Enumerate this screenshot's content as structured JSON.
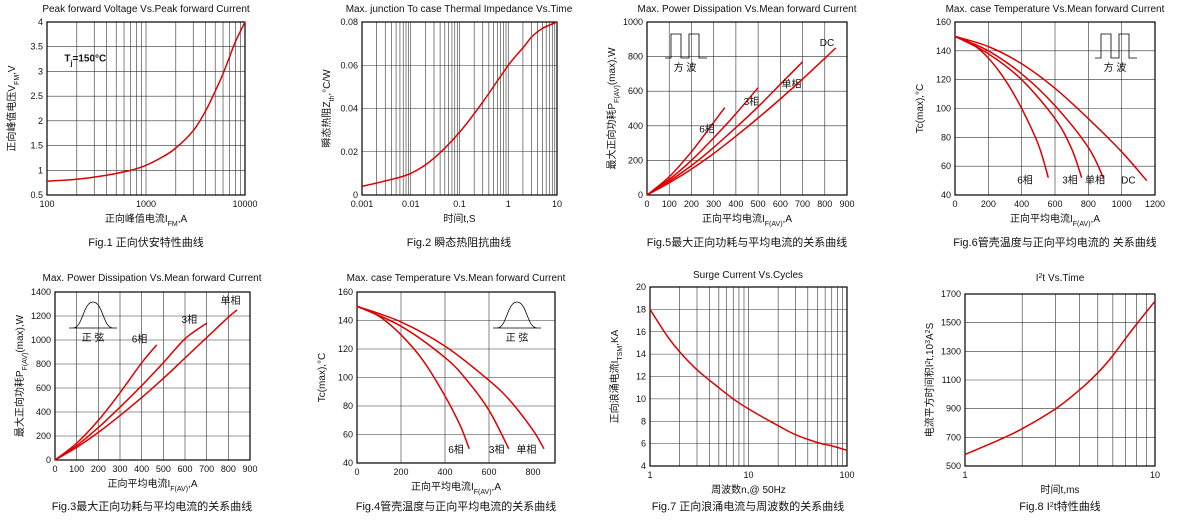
{
  "colors": {
    "curve": "#dd0000",
    "frame": "#000000",
    "grid": "#333333"
  },
  "chart_data": [
    {
      "id": "fig1",
      "type": "line",
      "title": "Peak forward Voltage Vs.Peak forward Current",
      "caption": "Fig.1 正向伏安特性曲线",
      "xlabel_main": "正向峰值电流I",
      "xlabel_sub": "FM",
      "xlabel_tail": ",A",
      "ylabel_main": "正向峰值电压V",
      "ylabel_sub": "FM",
      "ylabel_tail": ",V",
      "xscale": "log",
      "xlim": [
        100,
        10000
      ],
      "xticks": [
        100,
        1000,
        10000
      ],
      "xtick_labels": [
        "100",
        "1000",
        "10000"
      ],
      "ylim": [
        0.5,
        4
      ],
      "yticks": [
        0.5,
        1,
        1.5,
        2,
        2.5,
        3,
        3.5,
        4
      ],
      "ytick_labels": [
        "0.5",
        "1",
        "1.5",
        "2",
        "2.5",
        "3",
        "3.5",
        "4"
      ],
      "annotations": [
        {
          "text_main": "T",
          "text_sub": "j",
          "text_tail": "=150°C",
          "x": 150,
          "y": 3.2
        }
      ],
      "series": [
        {
          "x": [
            100,
            200,
            400,
            700,
            1000,
            1500,
            2000,
            3000,
            4000,
            5000,
            6000,
            7000,
            8000,
            10000
          ],
          "y": [
            0.78,
            0.82,
            0.9,
            1.0,
            1.1,
            1.28,
            1.45,
            1.8,
            2.2,
            2.6,
            2.95,
            3.3,
            3.6,
            4.0
          ]
        }
      ]
    },
    {
      "id": "fig2",
      "type": "line",
      "title": "Max. junction To case Thermal Impedance Vs.Time",
      "caption": "Fig.2  瞬态热阻抗曲线",
      "xlabel_main": "时间t,S",
      "xlabel_sub": "",
      "xlabel_tail": "",
      "ylabel_main": "瞬态热阻Z",
      "ylabel_sub": "th",
      "ylabel_tail": ",°C/W",
      "xscale": "log",
      "xlim": [
        0.001,
        10
      ],
      "xticks": [
        0.001,
        0.01,
        0.1,
        1,
        10
      ],
      "xtick_labels": [
        "0.001",
        "0.01",
        "0.1",
        "1",
        "10"
      ],
      "ylim": [
        0,
        0.08
      ],
      "yticks": [
        0,
        0.02,
        0.04,
        0.06,
        0.08
      ],
      "ytick_labels": [
        "0",
        "0.02",
        "0.04",
        "0.06",
        "0.08"
      ],
      "series": [
        {
          "x": [
            0.001,
            0.003,
            0.01,
            0.03,
            0.1,
            0.3,
            1,
            2,
            3,
            5,
            10
          ],
          "y": [
            0.004,
            0.0065,
            0.01,
            0.017,
            0.029,
            0.043,
            0.06,
            0.068,
            0.073,
            0.077,
            0.08
          ]
        }
      ]
    },
    {
      "id": "fig5",
      "type": "line",
      "title": "Max. Power Dissipation Vs.Mean forward Current",
      "caption": "Fig.5最大正向功耗与平均电流的关系曲线",
      "xlabel_main": "正向平均电流I",
      "xlabel_sub": "F(AV)",
      "xlabel_tail": ",A",
      "ylabel_main": "最大正向功耗P",
      "ylabel_sub": "F(AV)",
      "ylabel_tail": "(max),W",
      "xscale": "linear",
      "xlim": [
        0,
        900
      ],
      "xticks": [
        0,
        100,
        200,
        300,
        400,
        500,
        600,
        700,
        800,
        900
      ],
      "xtick_labels": [
        "0",
        "100",
        "200",
        "300",
        "400",
        "500",
        "600",
        "700",
        "800",
        "900"
      ],
      "ylim": [
        0,
        1000
      ],
      "yticks": [
        0,
        200,
        400,
        600,
        800,
        1000
      ],
      "ytick_labels": [
        "0",
        "200",
        "400",
        "600",
        "800",
        "1000"
      ],
      "inset": {
        "kind": "square",
        "label": "方  波"
      },
      "series": [
        {
          "name": "6相",
          "label_at": [
            270,
            360
          ],
          "x": [
            0,
            100,
            200,
            300,
            350
          ],
          "y": [
            0,
            105,
            250,
            420,
            505
          ]
        },
        {
          "name": "3相",
          "label_at": [
            470,
            520
          ],
          "x": [
            0,
            100,
            200,
            300,
            400,
            500
          ],
          "y": [
            0,
            90,
            200,
            330,
            470,
            620
          ]
        },
        {
          "name": "单相",
          "label_at": [
            650,
            620
          ],
          "x": [
            0,
            100,
            200,
            300,
            400,
            500,
            600,
            700
          ],
          "y": [
            0,
            80,
            170,
            275,
            390,
            510,
            640,
            770
          ]
        },
        {
          "name": "DC",
          "label_at": [
            810,
            860
          ],
          "x": [
            0,
            100,
            200,
            300,
            400,
            500,
            600,
            700,
            800,
            850
          ],
          "y": [
            0,
            70,
            150,
            240,
            340,
            445,
            555,
            670,
            790,
            850
          ]
        }
      ]
    },
    {
      "id": "fig6",
      "type": "line",
      "title": "Max. case Temperature Vs.Mean forward Current",
      "caption": "Fig.6管壳温度与正向平均电流的  关系曲线",
      "xlabel_main": "正向平均电流I",
      "xlabel_sub": "F(AV)",
      "xlabel_tail": ",A",
      "ylabel_main": "Tc(max),°C",
      "ylabel_sub": "",
      "ylabel_tail": "",
      "xscale": "linear",
      "xlim": [
        0,
        1200
      ],
      "xticks": [
        0,
        200,
        400,
        600,
        800,
        1000,
        1200
      ],
      "xtick_labels": [
        "0",
        "200",
        "400",
        "600",
        "800",
        "1000",
        "1200"
      ],
      "ylim": [
        40,
        160
      ],
      "yticks": [
        40,
        60,
        80,
        100,
        120,
        140,
        160
      ],
      "ytick_labels": [
        "40",
        "60",
        "80",
        "100",
        "120",
        "140",
        "160"
      ],
      "inset": {
        "kind": "square",
        "label": "方  波"
      },
      "series": [
        {
          "name": "6相",
          "label_at": [
            420,
            48
          ],
          "x": [
            0,
            100,
            200,
            300,
            400,
            500,
            560
          ],
          "y": [
            150,
            145,
            135,
            120,
            100,
            75,
            52
          ]
        },
        {
          "name": "3相",
          "label_at": [
            690,
            48
          ],
          "x": [
            0,
            200,
            400,
            600,
            700,
            760
          ],
          "y": [
            150,
            138,
            120,
            93,
            72,
            52
          ]
        },
        {
          "name": "单相",
          "label_at": [
            840,
            48
          ],
          "x": [
            0,
            200,
            400,
            600,
            800,
            890
          ],
          "y": [
            150,
            140,
            124,
            102,
            73,
            52
          ]
        },
        {
          "name": "DC",
          "label_at": [
            1040,
            48
          ],
          "x": [
            0,
            200,
            400,
            600,
            800,
            1000,
            1150
          ],
          "y": [
            150,
            143,
            131,
            114,
            93,
            70,
            50
          ]
        }
      ]
    },
    {
      "id": "fig3",
      "type": "line",
      "title": "Max. Power Dissipation Vs.Mean forward Current",
      "caption": "Fig.3最大正向功耗与平均电流的关系曲线",
      "xlabel_main": "正向平均电流I",
      "xlabel_sub": "F(AV)",
      "xlabel_tail": ",A",
      "ylabel_main": "最大正向功耗P",
      "ylabel_sub": "F(AV)",
      "ylabel_tail": "(max),W",
      "xscale": "linear",
      "xlim": [
        0,
        900
      ],
      "xticks": [
        0,
        100,
        200,
        300,
        400,
        500,
        600,
        700,
        800,
        900
      ],
      "xtick_labels": [
        "0",
        "100",
        "200",
        "300",
        "400",
        "500",
        "600",
        "700",
        "800",
        "900"
      ],
      "ylim": [
        0,
        1400
      ],
      "yticks": [
        0,
        200,
        400,
        600,
        800,
        1000,
        1200,
        1400
      ],
      "ytick_labels": [
        "0",
        "200",
        "400",
        "600",
        "800",
        "1000",
        "1200",
        "1400"
      ],
      "inset": {
        "kind": "sine",
        "label": "正  弦"
      },
      "series": [
        {
          "name": "6相",
          "label_at": [
            390,
            980
          ],
          "x": [
            0,
            100,
            200,
            300,
            400,
            470
          ],
          "y": [
            0,
            140,
            330,
            560,
            810,
            960
          ]
        },
        {
          "name": "3相",
          "label_at": [
            620,
            1140
          ],
          "x": [
            0,
            100,
            200,
            300,
            400,
            500,
            600,
            700
          ],
          "y": [
            0,
            120,
            270,
            440,
            620,
            810,
            1010,
            1140
          ]
        },
        {
          "name": "单相",
          "label_at": [
            810,
            1300
          ],
          "x": [
            0,
            100,
            200,
            300,
            400,
            500,
            600,
            700,
            800,
            840
          ],
          "y": [
            0,
            105,
            230,
            370,
            520,
            680,
            850,
            1020,
            1190,
            1250
          ]
        }
      ]
    },
    {
      "id": "fig4",
      "type": "line",
      "title": "Max. case Temperature Vs.Mean forward Current",
      "caption": "Fig.4管壳温度与正向平均电流的关系曲线",
      "xlabel_main": "正向平均电流I",
      "xlabel_sub": "F(AV)",
      "xlabel_tail": ",A",
      "ylabel_main": "Tc(max),°C",
      "ylabel_sub": "",
      "ylabel_tail": "",
      "xscale": "linear",
      "xlim": [
        0,
        900
      ],
      "xticks": [
        0,
        200,
        400,
        600,
        800
      ],
      "xtick_labels": [
        "0",
        "200",
        "400",
        "600",
        "800"
      ],
      "ylim": [
        40,
        160
      ],
      "yticks": [
        40,
        60,
        80,
        100,
        120,
        140,
        160
      ],
      "ytick_labels": [
        "40",
        "60",
        "80",
        "100",
        "120",
        "140",
        "160"
      ],
      "inset": {
        "kind": "sine",
        "label": "正  弦"
      },
      "series": [
        {
          "name": "6相",
          "label_at": [
            450,
            47
          ],
          "x": [
            0,
            100,
            200,
            300,
            400,
            470,
            510
          ],
          "y": [
            150,
            143,
            130,
            112,
            87,
            66,
            50
          ]
        },
        {
          "name": "3相",
          "label_at": [
            635,
            47
          ],
          "x": [
            0,
            200,
            400,
            500,
            600,
            690
          ],
          "y": [
            150,
            136,
            114,
            98,
            77,
            50
          ]
        },
        {
          "name": "单相",
          "label_at": [
            770,
            47
          ],
          "x": [
            0,
            200,
            400,
            600,
            700,
            800,
            850
          ],
          "y": [
            150,
            139,
            122,
            98,
            83,
            63,
            50
          ]
        }
      ]
    },
    {
      "id": "fig7",
      "type": "line",
      "title": "Surge Current Vs.Cycles",
      "caption": "Fig.7 正向浪涌电流与周波数的关系曲线",
      "xlabel_main": "周波数n,@ 50Hz",
      "xlabel_sub": "",
      "xlabel_tail": "",
      "ylabel_main": "正向浪涌电流I",
      "ylabel_sub": "TSM",
      "ylabel_tail": ",KA",
      "xscale": "log",
      "xlim": [
        1,
        100
      ],
      "xticks": [
        1,
        10,
        100
      ],
      "xtick_labels": [
        "1",
        "10",
        "100"
      ],
      "ylim": [
        4,
        20
      ],
      "yticks": [
        4,
        6,
        8,
        10,
        12,
        14,
        16,
        18,
        20
      ],
      "ytick_labels": [
        "4",
        "6",
        "8",
        "10",
        "12",
        "14",
        "16",
        "18",
        "20"
      ],
      "series": [
        {
          "x": [
            1,
            1.5,
            2,
            3,
            5,
            7,
            10,
            20,
            30,
            50,
            70,
            100
          ],
          "y": [
            18,
            15.6,
            14.2,
            12.6,
            11,
            10,
            9.1,
            7.6,
            6.8,
            6.1,
            5.8,
            5.4
          ]
        }
      ]
    },
    {
      "id": "fig8",
      "type": "line",
      "title_main": "I",
      "title_sup": "2",
      "title_tail": "t  Vs.Time",
      "caption_main": "Fig.8 I",
      "caption_sup": "2",
      "caption_tail": "t特性曲线",
      "xlabel_main": "时间t,ms",
      "xlabel_sub": "",
      "xlabel_tail": "",
      "ylabel_main": "电流平方时间积I",
      "ylabel_sup": "2",
      "ylabel_tail": "t,10",
      "ylabel_sup2": "3",
      "ylabel_tail2": "A",
      "ylabel_sup3": "2",
      "ylabel_tail3": "S",
      "xscale": "log",
      "xlim": [
        1,
        10
      ],
      "xticks": [
        1,
        10
      ],
      "xtick_labels": [
        "1",
        "10"
      ],
      "ylim": [
        500,
        1700
      ],
      "yticks": [
        500,
        700,
        900,
        1100,
        1300,
        1500,
        1700
      ],
      "ytick_labels": [
        "500",
        "700",
        "900",
        "1100",
        "1300",
        "1500",
        "1700"
      ],
      "series": [
        {
          "x": [
            1,
            1.5,
            2,
            3,
            4,
            5,
            6,
            7,
            8,
            10
          ],
          "y": [
            580,
            680,
            760,
            900,
            1030,
            1150,
            1270,
            1390,
            1490,
            1650
          ]
        }
      ]
    }
  ]
}
